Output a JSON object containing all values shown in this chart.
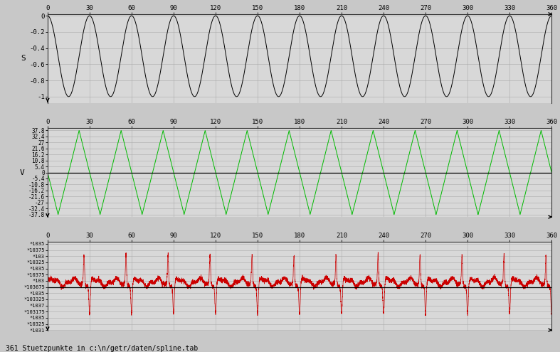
{
  "x_max": 360,
  "x_ticks": [
    0,
    30,
    60,
    90,
    120,
    150,
    180,
    210,
    240,
    270,
    300,
    330,
    360
  ],
  "plot1_ylabel": "S",
  "plot1_ylim": [
    -1.08,
    0.02
  ],
  "plot1_yticks": [
    0,
    -0.2,
    -0.4,
    -0.6,
    -0.8,
    -1
  ],
  "plot1_ytick_labels": [
    "0",
    "-0.2",
    "-0.4",
    "-0.6",
    "-0.8",
    "-1"
  ],
  "plot2_ylabel": "V",
  "plot2_yticks": [
    37.8,
    32.4,
    27,
    21.6,
    16.2,
    10.8,
    5.4,
    0,
    -5.4,
    -10.8,
    -16.2,
    -21.6,
    -27,
    -32.4,
    -37.8
  ],
  "plot3_ytick_labels": [
    "*1035",
    "*10375",
    "*103",
    "*10325",
    "*1035",
    "*10375",
    "*103",
    "*103675",
    "*1035",
    "*103325",
    "*1037",
    "*103175",
    "*1035",
    "*10325",
    "*1031"
  ],
  "bg_color": "#c8c8c8",
  "plot_bg_color": "#d8d8d8",
  "line_color_1": "#000000",
  "line_color_2": "#00bb00",
  "line_color_3": "#cc0000",
  "grid_color": "#aaaaaa",
  "footer": "361 Stuetzpunkte in c:\\n/getr/daten/spline.tab",
  "wave_period_deg": 30
}
